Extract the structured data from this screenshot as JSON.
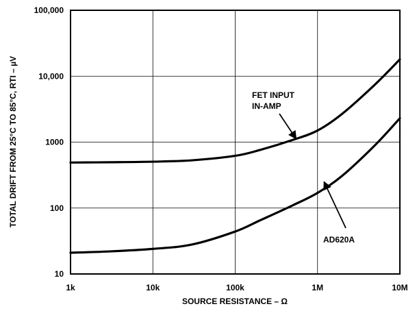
{
  "chart_data": {
    "type": "line",
    "title": "",
    "xlabel": "SOURCE RESISTANCE – Ω",
    "ylabel": "TOTAL DRIFT FROM 25°C TO 85°C, RTI – µV",
    "x_scale": "log",
    "y_scale": "log",
    "xlim": [
      1000,
      10000000
    ],
    "ylim": [
      10,
      100000
    ],
    "grid": true,
    "x_ticks": [
      {
        "value": 1000,
        "label": "1k"
      },
      {
        "value": 10000,
        "label": "10k"
      },
      {
        "value": 100000,
        "label": "100k"
      },
      {
        "value": 1000000,
        "label": "1M"
      },
      {
        "value": 10000000,
        "label": "10M"
      }
    ],
    "y_ticks": [
      {
        "value": 10,
        "label": "10"
      },
      {
        "value": 100,
        "label": "100"
      },
      {
        "value": 1000,
        "label": "1000"
      },
      {
        "value": 10000,
        "label": "10,000"
      },
      {
        "value": 100000,
        "label": "100,000"
      }
    ],
    "series": [
      {
        "name": "FET INPUT IN-AMP",
        "x": [
          1000,
          3000,
          10000,
          30000,
          100000,
          200000,
          500000,
          1000000,
          2000000,
          5000000,
          10000000
        ],
        "y": [
          490,
          495,
          505,
          530,
          620,
          760,
          1080,
          1500,
          2700,
          7500,
          18000
        ]
      },
      {
        "name": "AD620A",
        "x": [
          1000,
          3000,
          10000,
          30000,
          100000,
          200000,
          500000,
          1000000,
          2000000,
          5000000,
          10000000
        ],
        "y": [
          21,
          22,
          24,
          28,
          44,
          65,
          110,
          170,
          310,
          900,
          2300
        ]
      }
    ],
    "annotations": [
      {
        "lines": [
          "FET INPUT",
          "IN-AMP"
        ],
        "target": {
          "x": 550000,
          "y": 1120
        }
      },
      {
        "lines": [
          "AD620A"
        ],
        "target": {
          "x": 1200000,
          "y": 250
        }
      }
    ]
  }
}
